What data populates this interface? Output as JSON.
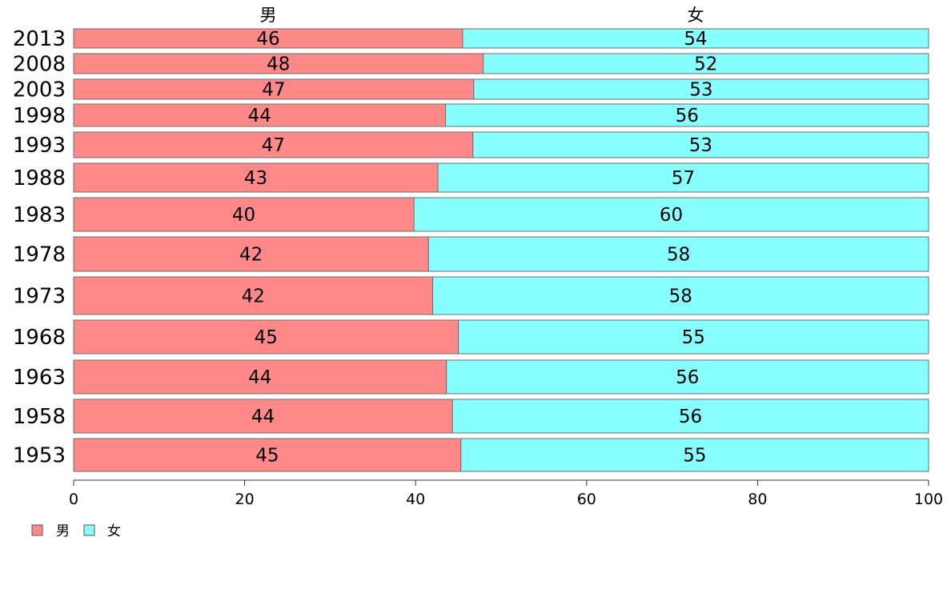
{
  "chart_data": {
    "type": "bar",
    "orientation": "horizontal",
    "stacked": "percent",
    "categories": [
      "2013",
      "2008",
      "2003",
      "1998",
      "1993",
      "1988",
      "1983",
      "1978",
      "1973",
      "1968",
      "1963",
      "1958",
      "1953"
    ],
    "series": [
      {
        "name": "男",
        "color": "#FF8888",
        "values": [
          45.5,
          47.9,
          46.8,
          43.5,
          46.7,
          42.6,
          39.8,
          41.5,
          42.0,
          45.0,
          43.6,
          44.3,
          45.3
        ],
        "labels": [
          "46",
          "48",
          "47",
          "44",
          "47",
          "43",
          "40",
          "42",
          "42",
          "45",
          "44",
          "44",
          "45"
        ]
      },
      {
        "name": "女",
        "color": "#88FFFF",
        "values": [
          54.5,
          52.1,
          53.2,
          56.5,
          53.3,
          57.4,
          60.2,
          58.5,
          58.0,
          55.0,
          56.4,
          55.7,
          54.7
        ],
        "labels": [
          "54",
          "52",
          "53",
          "56",
          "53",
          "57",
          "60",
          "58",
          "58",
          "55",
          "56",
          "56",
          "55"
        ]
      }
    ],
    "xlim": [
      0,
      100
    ],
    "xticks": [
      "0",
      "20",
      "40",
      "60",
      "80",
      "100"
    ],
    "legend": "bottom-left",
    "grid": false
  }
}
